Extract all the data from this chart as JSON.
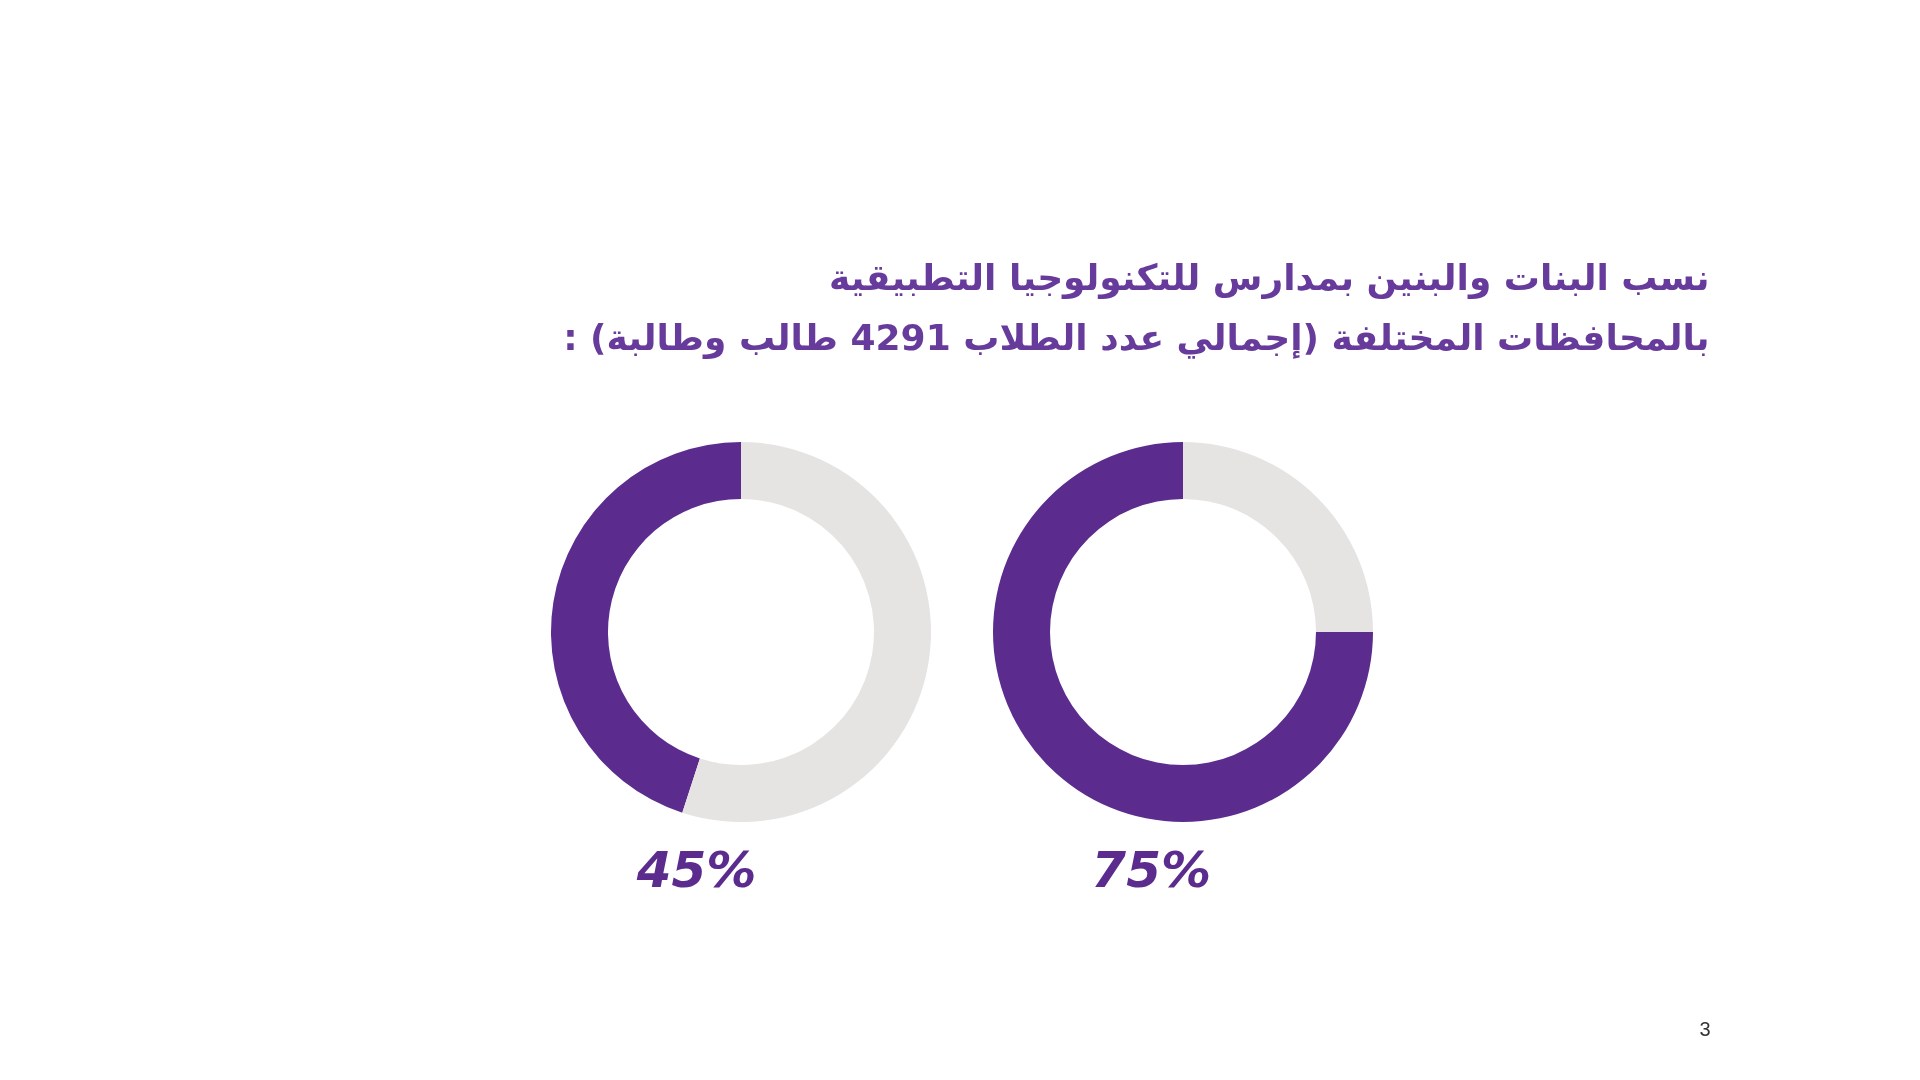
{
  "chart_data": [
    {
      "type": "donut",
      "title": "نسب البنات والبنين بمدارس للتكنولوجيا التطبيقية\nبالمحافظات المختلفة (إجمالي عدد الطلاب 4291 طالب وطالبة) :",
      "categories": [
        null,
        null
      ],
      "values": [
        45,
        55
      ],
      "colors": [
        "#5b2c8e",
        "#e6e3e3"
      ],
      "value_labels": [
        "45%",
        null
      ]
    },
    {
      "type": "donut",
      "categories": [
        null,
        null
      ],
      "values": [
        75,
        25
      ],
      "colors": [
        "#5b2c8e",
        "#e6e3e3"
      ],
      "value_labels": [
        "75%",
        null
      ],
      "annotations": [
        "3"
      ]
    }
  ]
}
